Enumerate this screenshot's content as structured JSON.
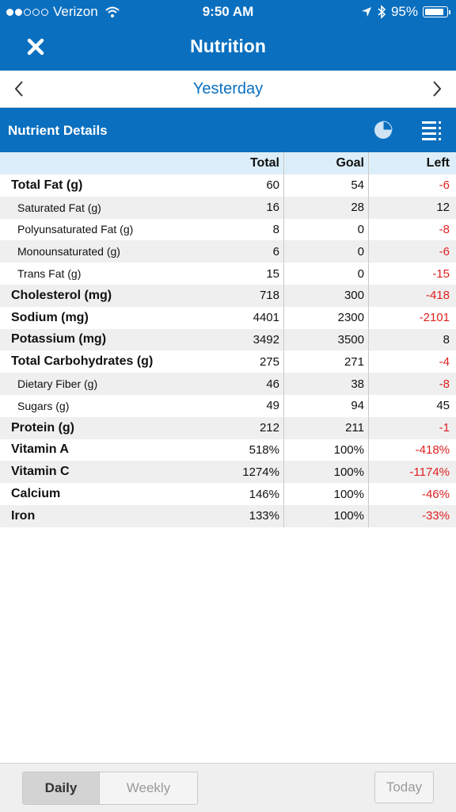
{
  "status_bar": {
    "carrier": "Verizon",
    "time": "9:50 AM",
    "battery": "95%",
    "battery_level": 0.95,
    "signal_full_dots": 2,
    "signal_total_dots": 5,
    "icons": [
      "wifi-icon",
      "location-arrow-icon",
      "bluetooth-icon",
      "battery-icon"
    ]
  },
  "nav": {
    "title": "Nutrition",
    "close_icon": "close-icon"
  },
  "date_bar": {
    "label": "Yesterday",
    "prev_icon": "chevron-left-icon",
    "next_icon": "chevron-right-icon"
  },
  "section": {
    "title": "Nutrient Details",
    "chart_icon": "pie-chart-icon",
    "list_icon": "list-view-icon"
  },
  "table": {
    "headers": {
      "total": "Total",
      "goal": "Goal",
      "left": "Left"
    },
    "rows": [
      {
        "name": "Total Fat (g)",
        "total": "60",
        "goal": "54",
        "left": "-6",
        "level": "main"
      },
      {
        "name": "Saturated Fat (g)",
        "total": "16",
        "goal": "28",
        "left": "12",
        "level": "sub"
      },
      {
        "name": "Polyunsaturated Fat (g)",
        "total": "8",
        "goal": "0",
        "left": "-8",
        "level": "sub"
      },
      {
        "name": "Monounsaturated (g)",
        "total": "6",
        "goal": "0",
        "left": "-6",
        "level": "sub"
      },
      {
        "name": "Trans Fat (g)",
        "total": "15",
        "goal": "0",
        "left": "-15",
        "level": "sub"
      },
      {
        "name": "Cholesterol (mg)",
        "total": "718",
        "goal": "300",
        "left": "-418",
        "level": "main"
      },
      {
        "name": "Sodium (mg)",
        "total": "4401",
        "goal": "2300",
        "left": "-2101",
        "level": "main"
      },
      {
        "name": "Potassium (mg)",
        "total": "3492",
        "goal": "3500",
        "left": "8",
        "level": "main"
      },
      {
        "name": "Total Carbohydrates (g)",
        "total": "275",
        "goal": "271",
        "left": "-4",
        "level": "main"
      },
      {
        "name": "Dietary Fiber (g)",
        "total": "46",
        "goal": "38",
        "left": "-8",
        "level": "sub"
      },
      {
        "name": "Sugars (g)",
        "total": "49",
        "goal": "94",
        "left": "45",
        "level": "sub"
      },
      {
        "name": "Protein (g)",
        "total": "212",
        "goal": "211",
        "left": "-1",
        "level": "main"
      },
      {
        "name": "Vitamin A",
        "total": "518%",
        "goal": "100%",
        "left": "-418%",
        "level": "main"
      },
      {
        "name": "Vitamin C",
        "total": "1274%",
        "goal": "100%",
        "left": "-1174%",
        "level": "main"
      },
      {
        "name": "Calcium",
        "total": "146%",
        "goal": "100%",
        "left": "-46%",
        "level": "main"
      },
      {
        "name": "Iron",
        "total": "133%",
        "goal": "100%",
        "left": "-33%",
        "level": "main"
      }
    ]
  },
  "bottom": {
    "daily": "Daily",
    "weekly": "Weekly",
    "today": "Today",
    "active_tab": "Daily"
  },
  "colors": {
    "brand": "#0a6fbf",
    "negative": "#e01f1f",
    "header_bg": "#dceef9",
    "alt_row": "#efefef"
  }
}
